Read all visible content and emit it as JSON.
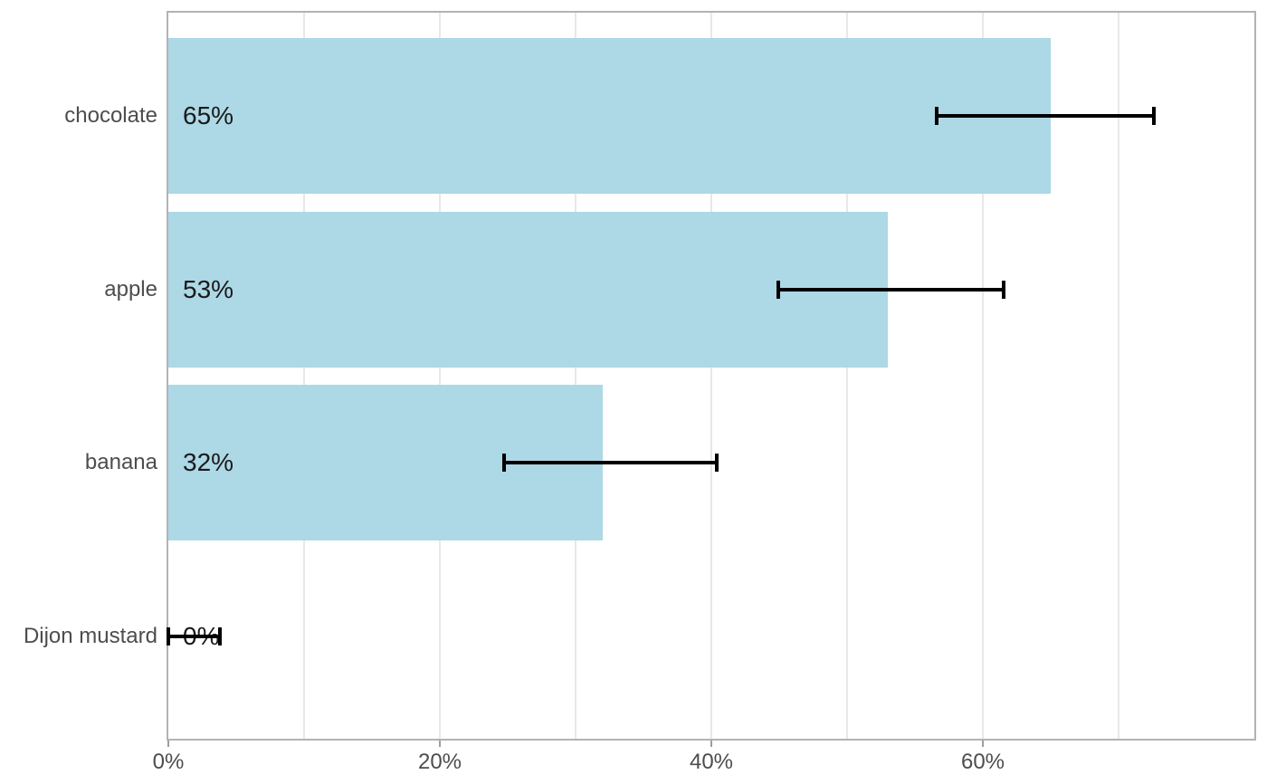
{
  "chart_data": {
    "type": "bar",
    "orientation": "horizontal",
    "title": "",
    "categories": [
      "chocolate",
      "apple",
      "banana",
      "Dijon mustard"
    ],
    "values": [
      65,
      53,
      32,
      0
    ],
    "value_labels": [
      "65%",
      "53%",
      "32%",
      "0%"
    ],
    "error_bars": {
      "low": [
        56.6,
        44.9,
        24.7,
        0
      ],
      "high": [
        72.6,
        61.5,
        40.4,
        3.8
      ]
    },
    "x_axis": {
      "min": 0,
      "max": 80,
      "ticks": [
        0,
        20,
        40,
        60
      ],
      "tick_labels": [
        "0%",
        "20%",
        "40%",
        "60%"
      ],
      "minor_grid_step": 10
    },
    "y_axis": {
      "label": ""
    },
    "grid": "vertical-only",
    "legend": "none",
    "colors": {
      "bar": "#ADD8E6",
      "error_bar": "#000000",
      "axis_text": "#4d4d4d",
      "value_text": "#1a1a1a",
      "gridline": "#e8e8e8",
      "panel_border": "#b3b3b3",
      "tick_mark": "#9e9e9e",
      "background": "#ffffff"
    }
  }
}
